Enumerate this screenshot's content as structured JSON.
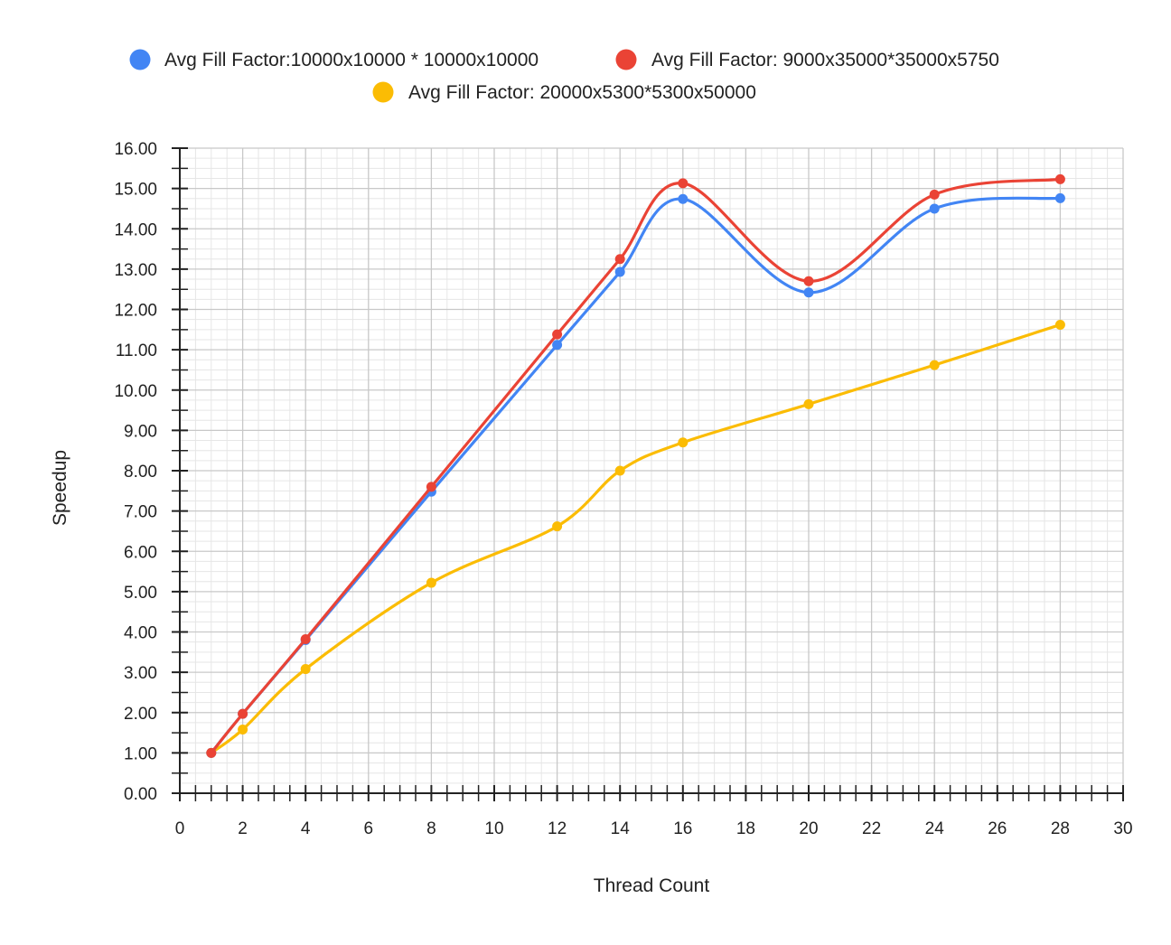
{
  "chart_data": {
    "type": "line",
    "title": "",
    "xlabel": "Thread Count",
    "ylabel": "Speedup",
    "xlim": [
      0,
      30
    ],
    "ylim": [
      0,
      16
    ],
    "x_ticks": [
      "0",
      "2",
      "4",
      "6",
      "8",
      "10",
      "12",
      "14",
      "16",
      "18",
      "20",
      "22",
      "24",
      "26",
      "28",
      "30"
    ],
    "y_ticks": [
      "0.00",
      "1.00",
      "2.00",
      "3.00",
      "4.00",
      "5.00",
      "6.00",
      "7.00",
      "8.00",
      "9.00",
      "10.00",
      "11.00",
      "12.00",
      "13.00",
      "14.00",
      "15.00",
      "16.00"
    ],
    "grid": true,
    "legend_position": "top",
    "x": [
      1,
      2,
      4,
      8,
      12,
      14,
      16,
      20,
      24,
      28
    ],
    "series": [
      {
        "name": "Avg Fill Factor:10000x10000 * 10000x10000",
        "color": "#4285F4",
        "values": [
          1.0,
          1.97,
          3.8,
          7.48,
          11.12,
          12.93,
          14.74,
          12.42,
          14.5,
          14.76
        ]
      },
      {
        "name": "Avg Fill Factor: 9000x35000*35000x5750",
        "color": "#EA4335",
        "values": [
          1.0,
          1.97,
          3.82,
          7.6,
          11.38,
          13.25,
          15.13,
          12.7,
          14.85,
          15.23
        ]
      },
      {
        "name": "Avg Fill Factor: 20000x5300*5300x50000",
        "color": "#FBBC04",
        "values": [
          1.0,
          1.58,
          3.08,
          5.22,
          6.62,
          8.0,
          8.7,
          9.65,
          10.62,
          11.62
        ]
      }
    ]
  }
}
